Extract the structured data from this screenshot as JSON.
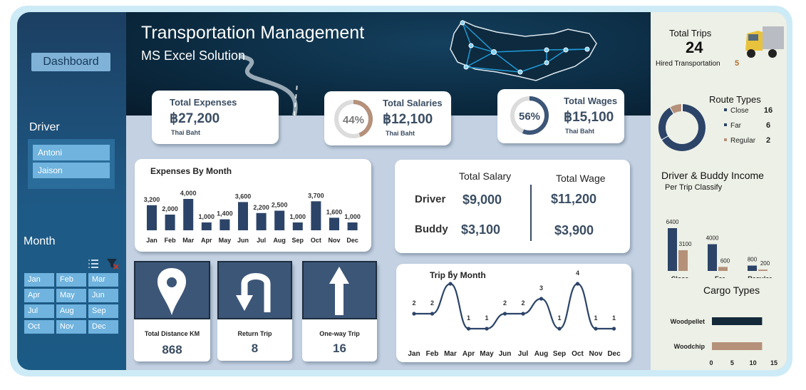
{
  "sidebar": {
    "dashboard_label": "Dashboard",
    "driver_title": "Driver",
    "drivers": [
      "Antoni",
      "Jaison"
    ],
    "month_title": "Month",
    "months": [
      "Jan",
      "Feb",
      "Mar",
      "Apr",
      "May",
      "Jun",
      "Jul",
      "Aug",
      "Sep",
      "Oct",
      "Nov",
      "Dec"
    ]
  },
  "header": {
    "title": "Transportation Management",
    "subtitle": "MS Excel Solution"
  },
  "kpis": {
    "expenses": {
      "label": "Total Expenses",
      "value": "฿27,200",
      "unit": "Thai Baht"
    },
    "salaries": {
      "label": "Total Salaries",
      "value": "฿12,100",
      "unit": "Thai Baht",
      "percent_label": "44%",
      "percent": 44
    },
    "wages": {
      "label": "Total Wages",
      "value": "฿15,100",
      "unit": "Thai Baht",
      "percent_label": "56%",
      "percent": 56
    }
  },
  "salary_table": {
    "col_salary": "Total Salary",
    "col_wage": "Total Wage",
    "rows": [
      {
        "name": "Driver",
        "salary": "$9,000",
        "wage": "$11,200"
      },
      {
        "name": "Buddy",
        "salary": "$3,100",
        "wage": "$3,900"
      }
    ]
  },
  "tiles": {
    "distance": {
      "label": "Total Distance KM",
      "value": "868"
    },
    "return": {
      "label": "Return Trip",
      "value": "8"
    },
    "oneway": {
      "label": "One-way Trip",
      "value": "16"
    }
  },
  "right_panel": {
    "total_trips_label": "Total Trips",
    "total_trips_value": "24",
    "hired_label": "Hired Transportation",
    "hired_value": "5"
  },
  "colors": {
    "navy": "#2c4468",
    "tan": "#b5917a",
    "dark_teal": "#13293a",
    "sidebar_button": "#6fb3de"
  },
  "chart_data": [
    {
      "type": "bar",
      "title": "Expenses By Month",
      "categories": [
        "Jan",
        "Feb",
        "Mar",
        "Apr",
        "May",
        "Jun",
        "Jul",
        "Aug",
        "Sep",
        "Oct",
        "Nov",
        "Dec"
      ],
      "values": [
        3200,
        2000,
        4000,
        1000,
        1400,
        3600,
        2200,
        2500,
        1000,
        3700,
        1600,
        1000
      ],
      "labels": [
        "3,200",
        "2,000",
        "4,000",
        "1,000",
        "1,400",
        "3,600",
        "2,200",
        "2,500",
        "1,000",
        "3,700",
        "1,600",
        "1,000"
      ],
      "ylim": [
        0,
        4000
      ]
    },
    {
      "type": "line",
      "title": "Trip by Month",
      "categories": [
        "Jan",
        "Feb",
        "Mar",
        "Apr",
        "May",
        "Jun",
        "Jul",
        "Aug",
        "Sep",
        "Oct",
        "Nov",
        "Dec"
      ],
      "values": [
        2,
        2,
        4,
        1,
        1,
        2,
        2,
        3,
        1,
        4,
        1,
        1
      ],
      "ylim": [
        0,
        4
      ]
    },
    {
      "type": "pie",
      "title": "Route Types",
      "series": [
        {
          "name": "Close",
          "value": 16
        },
        {
          "name": "Far",
          "value": 6
        },
        {
          "name": "Regular",
          "value": 2
        }
      ],
      "legend": "right"
    },
    {
      "type": "bar",
      "title": "Driver & Buddy Income",
      "subtitle": "Per Trip Classify",
      "categories": [
        "Close",
        "Far",
        "Regular"
      ],
      "series": [
        {
          "values": [
            6400,
            4000,
            800
          ]
        },
        {
          "values": [
            3100,
            600,
            200
          ]
        }
      ],
      "ylim": [
        0,
        6400
      ]
    },
    {
      "type": "bar",
      "title": "Cargo Types",
      "orientation": "horizontal",
      "categories": [
        "Woodpellet",
        "Woodchip"
      ],
      "values": [
        12,
        12
      ],
      "xticks": [
        "0",
        "5",
        "10",
        "15"
      ],
      "xlim": [
        0,
        15
      ]
    }
  ]
}
